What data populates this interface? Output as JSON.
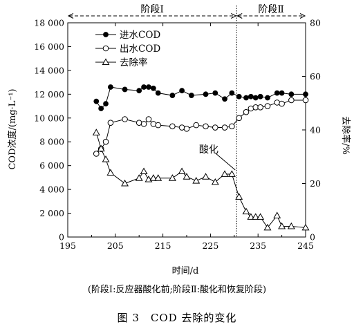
{
  "chart_data": {
    "type": "line",
    "title": "",
    "xlabel": "时间/d",
    "ylabel_left": "COD浓度/(mg·L⁻¹)",
    "ylabel_right": "去除率/%",
    "xlim": [
      195,
      245
    ],
    "x_ticks": [
      "195",
      "205",
      "215",
      "225",
      "235",
      "245"
    ],
    "ylim_left": [
      0,
      18000
    ],
    "y_left_ticks": [
      "0",
      "2 000",
      "4 000",
      "6 000",
      "8 000",
      "10 000",
      "12 000",
      "14 000",
      "16 000",
      "18 000"
    ],
    "ylim_right": [
      0,
      80
    ],
    "y_right_ticks": [
      "0",
      "20",
      "40",
      "60",
      "80"
    ],
    "grid": false,
    "legend_position": "top-left",
    "phases": [
      {
        "label": "阶段Ⅰ",
        "x_start": 195,
        "x_end": 230.5
      },
      {
        "label": "阶段Ⅱ",
        "x_start": 230.5,
        "x_end": 245
      }
    ],
    "divider_x": 230.5,
    "annotation": {
      "text": "酸化",
      "x": 230.5,
      "y_percent": 24
    },
    "series": [
      {
        "name": "进水COD",
        "axis": "left",
        "marker": "filled-circle",
        "x": [
          201,
          202,
          203,
          204,
          207,
          210,
          211,
          212,
          213,
          214,
          217,
          219,
          221,
          224,
          226,
          228,
          229.5,
          231,
          232.5,
          233.5,
          234.5,
          235.5,
          237,
          239,
          240,
          242,
          245
        ],
        "values": [
          11400,
          10800,
          11200,
          12600,
          12400,
          12300,
          12600,
          12600,
          12500,
          12100,
          11900,
          12300,
          11900,
          12000,
          12100,
          11600,
          12100,
          11800,
          11700,
          11800,
          11700,
          11800,
          11700,
          12100,
          12100,
          12000,
          12000
        ]
      },
      {
        "name": "出水COD",
        "axis": "left",
        "marker": "open-circle",
        "x": [
          201,
          202,
          203,
          204,
          207,
          210,
          211,
          212,
          213,
          214,
          217,
          219,
          220,
          222,
          224,
          226,
          228,
          229.5,
          231,
          232.5,
          233.5,
          234.5,
          235.5,
          237,
          239,
          240,
          242,
          245
        ],
        "values": [
          7000,
          7400,
          8000,
          9600,
          9900,
          9600,
          9500,
          9900,
          9500,
          9400,
          9300,
          9200,
          9100,
          9400,
          9300,
          9200,
          9200,
          9300,
          10000,
          10500,
          10800,
          10900,
          10900,
          11000,
          11300,
          11200,
          11500,
          11500
        ]
      },
      {
        "name": "去除率",
        "axis": "right",
        "marker": "open-triangle",
        "x": [
          201,
          202,
          203,
          204,
          207,
          210,
          211,
          212,
          213,
          214,
          217,
          219,
          220,
          222,
          224,
          226,
          228,
          229.5,
          231,
          232.5,
          233.5,
          234.5,
          235.5,
          237,
          239,
          240,
          242,
          245
        ],
        "values": [
          39,
          33,
          29,
          24,
          20,
          22,
          24.5,
          21.5,
          22,
          22,
          22,
          24.5,
          22.5,
          21,
          22.5,
          20.5,
          23.5,
          23.5,
          15,
          9.5,
          7.5,
          7.5,
          7.5,
          3.5,
          8,
          4,
          4,
          3.5
        ]
      }
    ]
  },
  "caption": {
    "note": "(阶段Ⅰ:反应器酸化前;阶段Ⅱ:酸化和恢复阶段)",
    "title": "图 3　COD 去除的变化"
  }
}
